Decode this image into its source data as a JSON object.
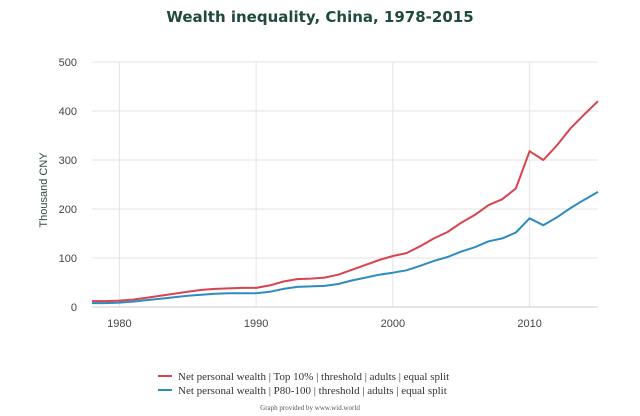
{
  "chart_data": {
    "type": "line",
    "title": "Wealth inequality, China, 1978-2015",
    "ylabel": "Thousand CNY",
    "xlabel": "",
    "xlim": [
      1978,
      2015
    ],
    "ylim": [
      0,
      500
    ],
    "x_ticks": [
      "1980",
      "1990",
      "2000",
      "2010"
    ],
    "y_ticks": [
      "0",
      "100",
      "200",
      "300",
      "400",
      "500"
    ],
    "grid": true,
    "legend_position": "bottom",
    "series": [
      {
        "name": "Net personal wealth | Top 10% | threshold | adults | equal split",
        "color": "#d9434f",
        "x": [
          1978,
          1979,
          1980,
          1981,
          1982,
          1983,
          1984,
          1985,
          1986,
          1987,
          1988,
          1989,
          1990,
          1991,
          1992,
          1993,
          1994,
          1995,
          1996,
          1997,
          1998,
          1999,
          2000,
          2001,
          2002,
          2003,
          2004,
          2005,
          2006,
          2007,
          2008,
          2009,
          2010,
          2011,
          2012,
          2013,
          2014,
          2015
        ],
        "y": [
          12,
          12,
          13,
          15,
          19,
          23,
          27,
          31,
          35,
          37,
          38,
          39,
          39,
          44,
          52,
          57,
          58,
          60,
          66,
          76,
          86,
          96,
          104,
          110,
          124,
          140,
          153,
          172,
          188,
          208,
          220,
          242,
          318,
          300,
          330,
          365,
          393,
          420
        ]
      },
      {
        "name": "Net personal wealth | P80-100 | threshold | adults | equal split",
        "color": "#2e8bc0",
        "x": [
          1978,
          1979,
          1980,
          1981,
          1982,
          1983,
          1984,
          1985,
          1986,
          1987,
          1988,
          1989,
          1990,
          1991,
          1992,
          1993,
          1994,
          1995,
          1996,
          1997,
          1998,
          1999,
          2000,
          2001,
          2002,
          2003,
          2004,
          2005,
          2006,
          2007,
          2008,
          2009,
          2010,
          2011,
          2012,
          2013,
          2014,
          2015
        ],
        "y": [
          8,
          8,
          9,
          11,
          14,
          17,
          20,
          23,
          25,
          27,
          28,
          28,
          28,
          31,
          37,
          41,
          42,
          43,
          47,
          54,
          60,
          66,
          70,
          75,
          84,
          94,
          102,
          113,
          122,
          134,
          140,
          152,
          181,
          167,
          183,
          202,
          219,
          235
        ]
      }
    ]
  },
  "credit": "Graph provided by www.wid.world"
}
